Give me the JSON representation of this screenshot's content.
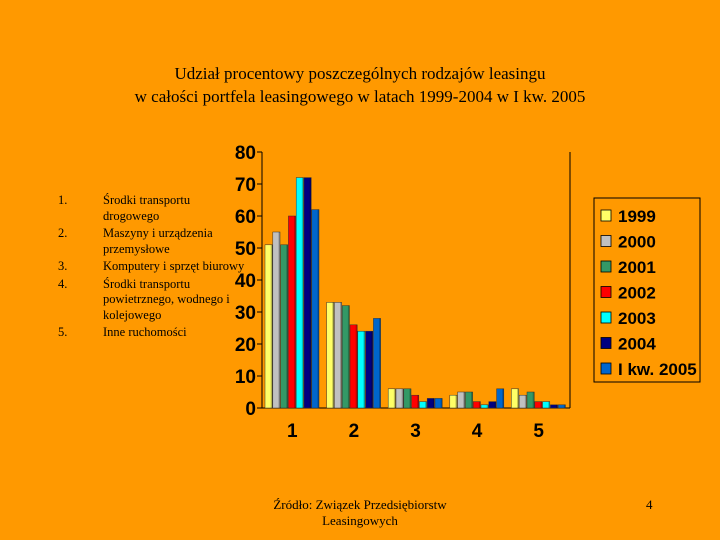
{
  "title_line1": "Udział procentowy poszczególnych rodzajów leasingu",
  "title_line2": "w całości portfela leasingowego w latach 1999-2004 w I kw. 2005",
  "categories_list": [
    {
      "num": "1.",
      "text": "Środki transportu drogowego"
    },
    {
      "num": "2.",
      "text": "Maszyny i urządzenia przemysłowe"
    },
    {
      "num": "3.",
      "text": "Komputery i sprzęt biurowy"
    },
    {
      "num": "4.",
      "text": "Środki transportu powietrznego, wodnego i kolejowego"
    },
    {
      "num": "5.",
      "text": "Inne ruchomości"
    }
  ],
  "source": "Źródło: Związek Przedsiębiorstw Leasingowych",
  "page_number": "4",
  "chart_data": {
    "type": "bar",
    "categories": [
      "1",
      "2",
      "3",
      "4",
      "5"
    ],
    "ylim": [
      0,
      80
    ],
    "yticks": [
      "0",
      "10",
      "20",
      "30",
      "40",
      "50",
      "60",
      "70",
      "80"
    ],
    "legend_placement": "right",
    "series": [
      {
        "name": "1999",
        "color": "#FFFF66",
        "values": [
          51,
          33,
          6,
          4,
          6
        ]
      },
      {
        "name": "2000",
        "color": "#C0C0C0",
        "values": [
          55,
          33,
          6,
          5,
          4
        ]
      },
      {
        "name": "2001",
        "color": "#339966",
        "values": [
          51,
          32,
          6,
          5,
          5
        ]
      },
      {
        "name": "2002",
        "color": "#FF0000",
        "values": [
          60,
          26,
          4,
          2,
          2
        ]
      },
      {
        "name": "2003",
        "color": "#00FFFF",
        "values": [
          72,
          24,
          2,
          1,
          2
        ]
      },
      {
        "name": "2004",
        "color": "#000080",
        "values": [
          72,
          24,
          3,
          2,
          1
        ]
      },
      {
        "name": "I kw. 2005",
        "color": "#0066CC",
        "values": [
          62,
          28,
          3,
          6,
          1
        ]
      }
    ]
  }
}
